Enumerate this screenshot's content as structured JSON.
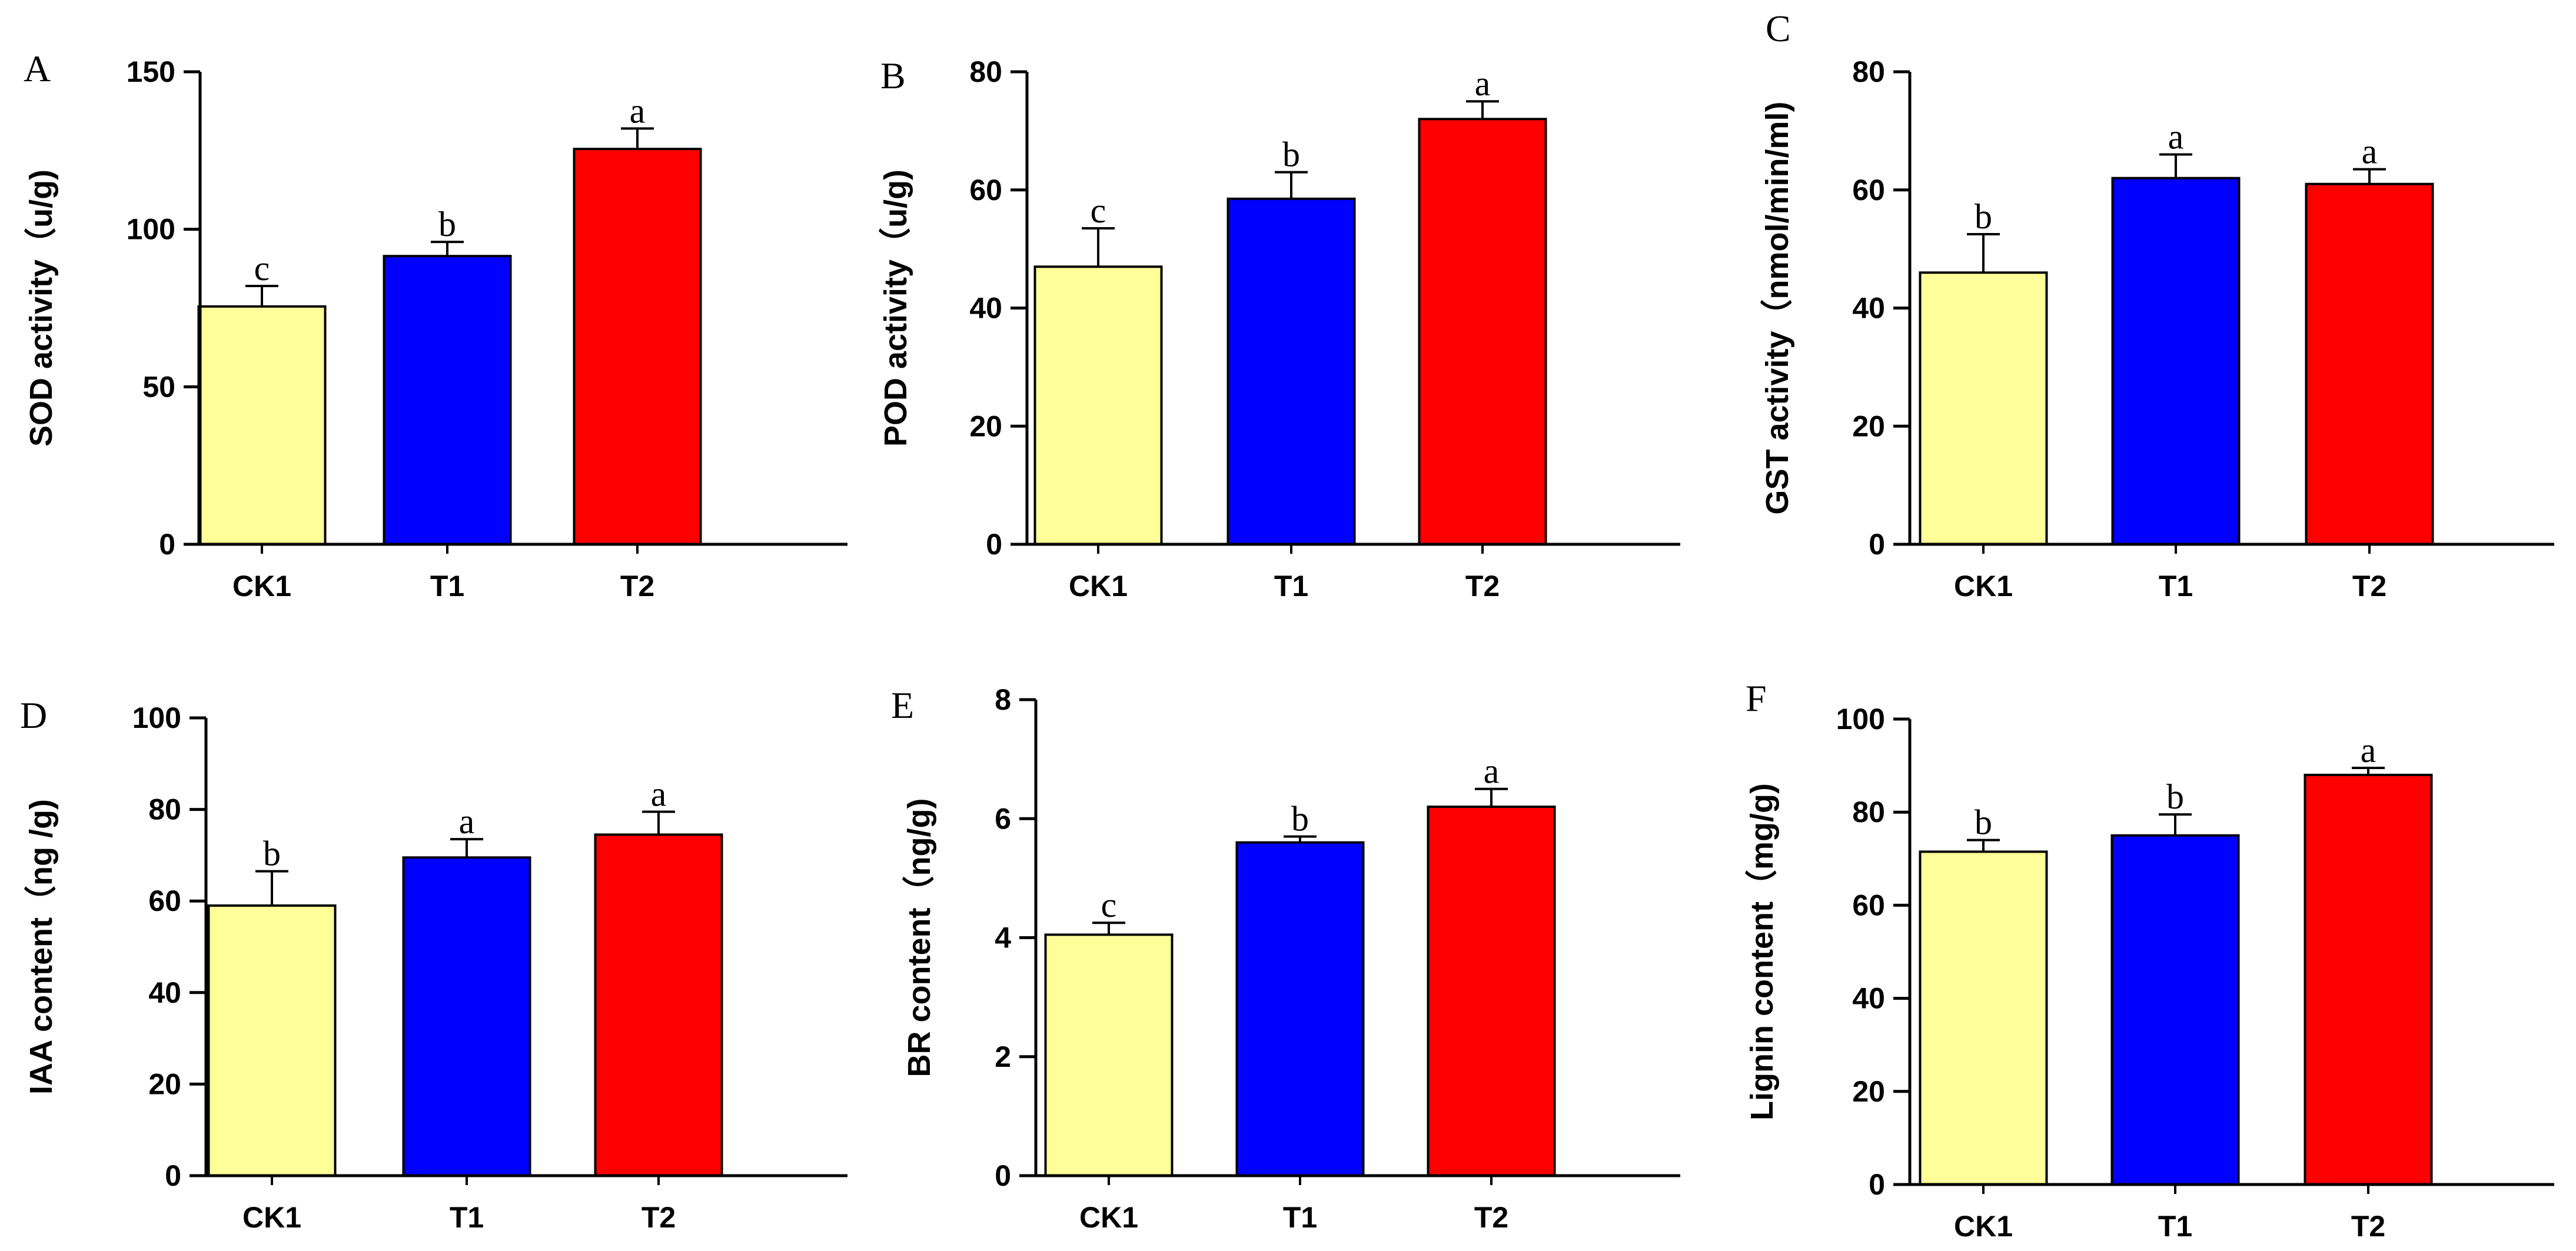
{
  "figure": {
    "title": "Six-panel bar chart figure"
  },
  "chart_data": [
    {
      "panel": "A",
      "type": "bar",
      "ylabel": "SOD activity（u/g)",
      "categories": [
        "CK1",
        "T1",
        "T2"
      ],
      "values": [
        75.5,
        91.5,
        125.5
      ],
      "errors": [
        6.5,
        4.5,
        6.5
      ],
      "letters": [
        "c",
        "b",
        "a"
      ],
      "colors": [
        "#ffff99",
        "#0000ff",
        "#ff0000"
      ],
      "ylim": [
        0,
        150
      ],
      "yticks": [
        0,
        50,
        100,
        150
      ]
    },
    {
      "panel": "B",
      "type": "bar",
      "ylabel": "POD activity（u/g)",
      "categories": [
        "CK1",
        "T1",
        "T2"
      ],
      "values": [
        47,
        58.5,
        72
      ],
      "errors": [
        6.5,
        4.5,
        3
      ],
      "letters": [
        "c",
        "b",
        "a"
      ],
      "colors": [
        "#ffff99",
        "#0000ff",
        "#ff0000"
      ],
      "ylim": [
        0,
        80
      ],
      "yticks": [
        0,
        20,
        40,
        60,
        80
      ]
    },
    {
      "panel": "C",
      "type": "bar",
      "ylabel": "GST activity（nmol/min/ml)",
      "categories": [
        "CK1",
        "T1",
        "T2"
      ],
      "values": [
        46,
        62,
        61
      ],
      "errors": [
        6.5,
        4,
        2.5
      ],
      "letters": [
        "b",
        "a",
        "a"
      ],
      "colors": [
        "#ffff99",
        "#0000ff",
        "#ff0000"
      ],
      "ylim": [
        0,
        80
      ],
      "yticks": [
        0,
        20,
        40,
        60,
        80
      ]
    },
    {
      "panel": "D",
      "type": "bar",
      "ylabel": "IAA content（ng /g)",
      "categories": [
        "CK1",
        "T1",
        "T2"
      ],
      "values": [
        59,
        69.5,
        74.5
      ],
      "errors": [
        7.5,
        4,
        5
      ],
      "letters": [
        "b",
        "a",
        "a"
      ],
      "colors": [
        "#ffff99",
        "#0000ff",
        "#ff0000"
      ],
      "ylim": [
        0,
        100
      ],
      "yticks": [
        0,
        20,
        40,
        60,
        80,
        100
      ]
    },
    {
      "panel": "E",
      "type": "bar",
      "ylabel": "BR content（ng/g)",
      "categories": [
        "CK1",
        "T1",
        "T2"
      ],
      "values": [
        4.05,
        5.6,
        6.2
      ],
      "errors": [
        0.2,
        0.1,
        0.3
      ],
      "letters": [
        "c",
        "b",
        "a"
      ],
      "colors": [
        "#ffff99",
        "#0000ff",
        "#ff0000"
      ],
      "ylim": [
        0,
        8
      ],
      "yticks": [
        0,
        2,
        4,
        6,
        8
      ]
    },
    {
      "panel": "F",
      "type": "bar",
      "ylabel": "Lignin content（mg/g)",
      "categories": [
        "CK1",
        "T1",
        "T2"
      ],
      "values": [
        71.5,
        75,
        88
      ],
      "errors": [
        2.5,
        4.5,
        1.5
      ],
      "letters": [
        "b",
        "b",
        "a"
      ],
      "colors": [
        "#ffff99",
        "#0000ff",
        "#ff0000"
      ],
      "ylim": [
        0,
        100
      ],
      "yticks": [
        0,
        20,
        40,
        60,
        80,
        100
      ]
    }
  ]
}
